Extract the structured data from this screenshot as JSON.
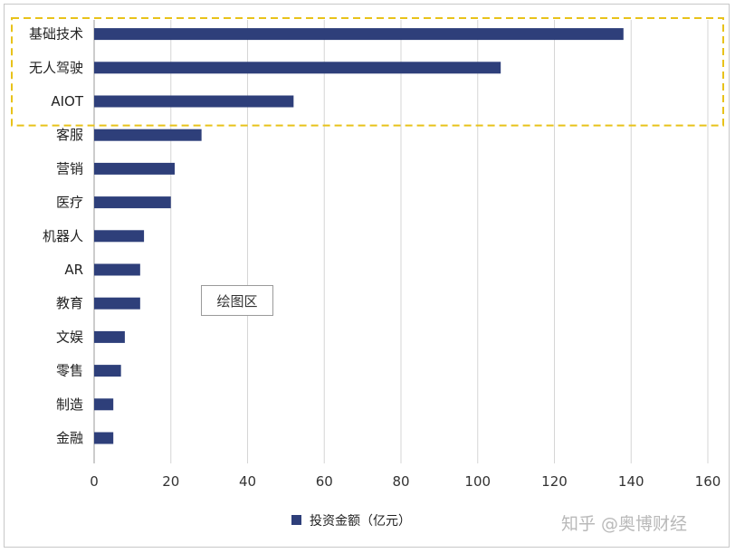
{
  "chart_data": {
    "type": "bar",
    "orientation": "horizontal",
    "categories": [
      "基础技术",
      "无人驾驶",
      "AIOT",
      "客服",
      "营销",
      "医疗",
      "机器人",
      "AR",
      "教育",
      "文娱",
      "零售",
      "制造",
      "金融"
    ],
    "series": [
      {
        "name": "投资金额（亿元）",
        "values": [
          138,
          106,
          52,
          28,
          21,
          20,
          13,
          12,
          12,
          8,
          7,
          5,
          5
        ],
        "color": "#2e3f7a"
      }
    ],
    "xlim": [
      0,
      160
    ],
    "xticks": [
      0,
      20,
      40,
      60,
      80,
      100,
      120,
      140,
      160
    ],
    "grid": "vertical",
    "legend": "bottom-center",
    "highlight": {
      "categories": [
        "基础技术",
        "无人驾驶",
        "AIOT"
      ],
      "color": "#e8c21a",
      "style": "dashed"
    }
  },
  "annotation": "绘图区",
  "watermark": "知乎 @奥博财经"
}
